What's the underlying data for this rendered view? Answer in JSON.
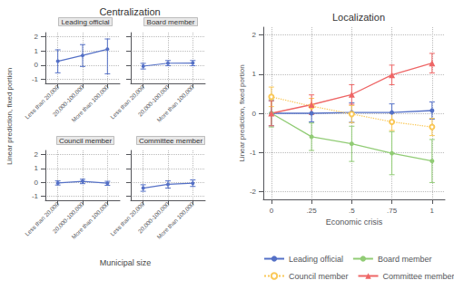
{
  "chart_data": [
    {
      "type": "line",
      "title": "Centralization",
      "xlabel": "Municipal size",
      "ylabel": "Linear prediction, fixed portion",
      "categories": [
        "Less than 20,000",
        "20,000-100,000",
        "More than 100,000"
      ],
      "series": [
        {
          "name": "Leading official",
          "values": [
            0.27,
            0.68,
            1.12
          ],
          "error_low": [
            0.82,
            0.78,
            1.74
          ],
          "error_high": [
            0.81,
            0.77,
            0.73
          ]
        },
        {
          "name": "Board member",
          "values": [
            -0.08,
            0.13,
            0.14
          ],
          "error_low": [
            0.2,
            0.18,
            0.19
          ],
          "error_high": [
            0.2,
            0.19,
            0.18
          ]
        },
        {
          "name": "Council member",
          "values": [
            -0.05,
            0.07,
            -0.07
          ],
          "error_low": [
            0.15,
            0.17,
            0.15
          ],
          "error_high": [
            0.15,
            0.15,
            0.14
          ]
        },
        {
          "name": "Committee member",
          "values": [
            -0.42,
            -0.15,
            -0.07
          ],
          "error_low": [
            0.23,
            0.27,
            0.23
          ],
          "error_high": [
            0.24,
            0.25,
            0.24
          ]
        }
      ],
      "ylim": [
        -1.3,
        2.3
      ],
      "yticks": [
        -1,
        0,
        1,
        2
      ],
      "grid": true,
      "marker": "circle",
      "line_style": "solid"
    },
    {
      "type": "line",
      "title": "Localization",
      "xlabel": "Economic crisis",
      "ylabel": "Linear prediction, fixed portion",
      "x": [
        0,
        0.25,
        0.5,
        0.75,
        1.0
      ],
      "series": [
        {
          "name": "Leading official",
          "values": [
            0.0,
            0.0,
            0.02,
            0.02,
            0.07
          ],
          "error": [
            0.32,
            0.22,
            0.25,
            0.22,
            0.22
          ],
          "marker": "circle",
          "line_style": "solid"
        },
        {
          "name": "Board member",
          "values": [
            0.0,
            -0.6,
            -0.78,
            -1.02,
            -1.22
          ],
          "error_low": [
            0.35,
            0.35,
            0.45,
            0.55,
            0.55
          ],
          "error_high": [
            0.35,
            0.35,
            0.45,
            0.55,
            0.55
          ],
          "marker": "circle",
          "line_style": "solid"
        },
        {
          "name": "Council member",
          "values": [
            0.42,
            0.18,
            -0.02,
            -0.22,
            -0.35
          ],
          "error": [
            0.25,
            0.2,
            0.22,
            0.22,
            0.22
          ],
          "marker": "open_circle",
          "line_style": "dotted"
        },
        {
          "name": "Committee member",
          "values": [
            0.0,
            0.22,
            0.48,
            0.98,
            1.28
          ],
          "error": [
            0.32,
            0.25,
            0.25,
            0.25,
            0.25
          ],
          "marker": "triangle",
          "line_style": "solid"
        }
      ],
      "xlim": [
        -0.05,
        1.08
      ],
      "xticks": [
        0,
        {
          "value": 0.25,
          "label": ".25"
        },
        {
          "value": 0.5,
          "label": ".5"
        },
        {
          "value": 0.75,
          "label": ".75"
        },
        1
      ],
      "ylim": [
        -2.2,
        2.2
      ],
      "yticks": [
        -2,
        -1,
        0,
        1,
        2
      ],
      "grid": true,
      "legend": "bottom"
    }
  ]
}
